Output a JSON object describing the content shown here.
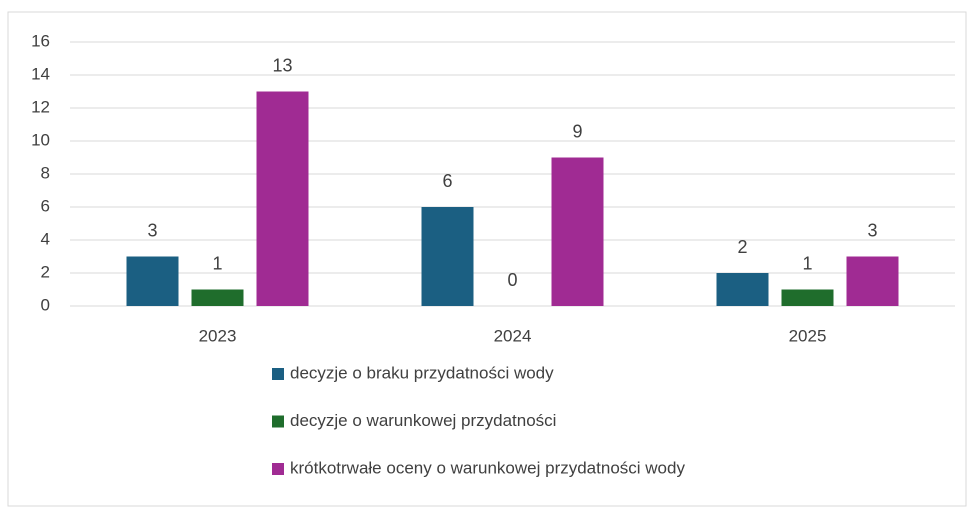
{
  "chart_data": {
    "type": "bar",
    "categories": [
      "2023",
      "2024",
      "2025"
    ],
    "series": [
      {
        "name": "decyzje o braku przydatności wody",
        "color": "#1b5f82",
        "values": [
          3,
          6,
          2
        ]
      },
      {
        "name": "decyzje o warunkowej przydatności",
        "color": "#1f6d2c",
        "values": [
          1,
          0,
          1
        ]
      },
      {
        "name": "krótkotrwałe oceny o warunkowej przydatności wody",
        "color": "#a02b93",
        "values": [
          13,
          9,
          3
        ]
      }
    ],
    "ylim": [
      0,
      16
    ],
    "yticks": [
      0,
      2,
      4,
      6,
      8,
      10,
      12,
      14,
      16
    ],
    "grid": true,
    "legend": "bottom"
  }
}
